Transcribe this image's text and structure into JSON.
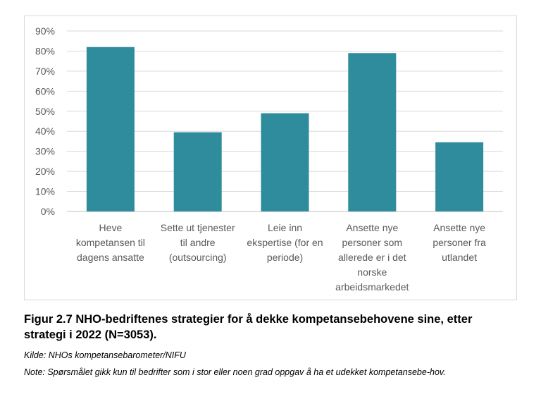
{
  "chart_data": {
    "type": "bar",
    "categories": [
      [
        "Heve",
        "kompetansen til",
        "dagens ansatte"
      ],
      [
        "Sette ut tjenester",
        "til andre",
        "(outsourcing)"
      ],
      [
        "Leie inn",
        "ekspertise (for en",
        "periode)"
      ],
      [
        "Ansette nye",
        "personer som",
        "allerede er i det",
        "norske",
        "arbeidsmarkedet"
      ],
      [
        "Ansette nye",
        "personer fra",
        "utlandet"
      ]
    ],
    "values": [
      82,
      39.5,
      49,
      79,
      34.5
    ],
    "y_ticks": [
      "0%",
      "10%",
      "20%",
      "30%",
      "40%",
      "50%",
      "60%",
      "70%",
      "80%",
      "90%"
    ],
    "ylim": [
      0,
      90
    ],
    "grid": true,
    "bar_color": "#2e8c9c",
    "title": "",
    "xlabel": "",
    "ylabel": ""
  },
  "caption": {
    "figure": "Figur 2.7 NHO-bedriftenes strategier for å dekke kompetansebehovene sine, etter strategi i 2022 (N=3053).",
    "source": "Kilde: NHOs kompetansebarometer/NIFU",
    "note": "Note: Spørsmålet gikk kun til bedrifter som i stor eller noen grad oppgav å ha et udekket kompetansebe-hov."
  }
}
